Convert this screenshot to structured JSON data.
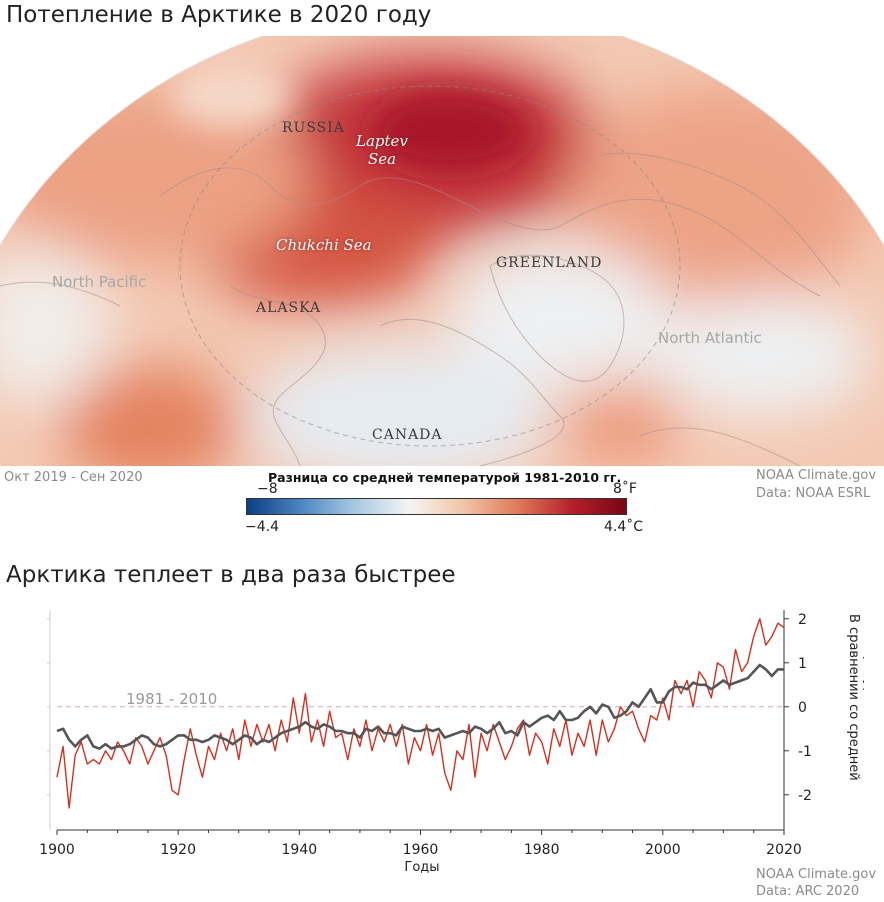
{
  "header": {
    "title": "Потепление в Арктике в 2020 году",
    "period": "Окт 2019 - Сен 2020",
    "credit_1": "NOAA Climate.gov",
    "credit_2": "Data: NOAA ESRL"
  },
  "map": {
    "labels": {
      "russia": "RUSSIA",
      "laptev_1": "Laptev",
      "laptev_2": "Sea",
      "chukchi": "Chukchi Sea",
      "greenland": "GREENLAND",
      "north_pacific": "North Pacific",
      "alaska": "ALASKA",
      "north_atlantic": "North Atlantic",
      "canada": "CANADA"
    }
  },
  "legend": {
    "title": "Разница со средней температурой 1981-2010 гг.",
    "f_min": "−8",
    "f_max": "8˚F",
    "c_min": "−4.4",
    "c_max": "4.4˚C",
    "colors": [
      "#0b3f86",
      "#4d86c2",
      "#a8c9e3",
      "#f4f4f4",
      "#f2c4a8",
      "#de7a5a",
      "#b6202b",
      "#7a0416"
    ]
  },
  "chart_section": {
    "title": "Арктика теплеет в два раза быстрее",
    "baseline_label": "1981 - 2010",
    "xlabel": "Годы",
    "ylabel": "В сравнении со средней температурой (С˚)",
    "credit_1": "NOAA Climate.gov",
    "credit_2": "Data: ARC 2020"
  },
  "chart_data": {
    "type": "line",
    "xlim": [
      1900,
      2020
    ],
    "ylim": [
      -2.8,
      2.2
    ],
    "x_ticks": [
      1900,
      1920,
      1940,
      1960,
      1980,
      2000,
      2020
    ],
    "y_ticks": [
      2,
      1,
      0,
      -1,
      -2
    ],
    "colors": {
      "arctic": "#d4301f",
      "global": "#555555",
      "baseline": "#d6a8b6"
    },
    "series": [
      {
        "key": "arctic",
        "x": [
          1900,
          1901,
          1902,
          1903,
          1904,
          1905,
          1906,
          1907,
          1908,
          1909,
          1910,
          1911,
          1912,
          1913,
          1914,
          1915,
          1916,
          1917,
          1918,
          1919,
          1920,
          1921,
          1922,
          1923,
          1924,
          1925,
          1926,
          1927,
          1928,
          1929,
          1930,
          1931,
          1932,
          1933,
          1934,
          1935,
          1936,
          1937,
          1938,
          1939,
          1940,
          1941,
          1942,
          1943,
          1944,
          1945,
          1946,
          1947,
          1948,
          1949,
          1950,
          1951,
          1952,
          1953,
          1954,
          1955,
          1956,
          1957,
          1958,
          1959,
          1960,
          1961,
          1962,
          1963,
          1964,
          1965,
          1966,
          1967,
          1968,
          1969,
          1970,
          1971,
          1972,
          1973,
          1974,
          1975,
          1976,
          1977,
          1978,
          1979,
          1980,
          1981,
          1982,
          1983,
          1984,
          1985,
          1986,
          1987,
          1988,
          1989,
          1990,
          1991,
          1992,
          1993,
          1994,
          1995,
          1996,
          1997,
          1998,
          1999,
          2000,
          2001,
          2002,
          2003,
          2004,
          2005,
          2006,
          2007,
          2008,
          2009,
          2010,
          2011,
          2012,
          2013,
          2014,
          2015,
          2016,
          2017,
          2018,
          2019,
          2020
        ],
        "values": [
          -1.6,
          -0.9,
          -2.3,
          -1.1,
          -0.8,
          -1.3,
          -1.2,
          -1.3,
          -1.0,
          -1.2,
          -0.8,
          -1.0,
          -1.3,
          -0.7,
          -0.9,
          -1.3,
          -1.0,
          -0.7,
          -1.1,
          -1.9,
          -2.0,
          -1.2,
          -0.5,
          -1.1,
          -1.6,
          -0.9,
          -1.2,
          -0.6,
          -1.0,
          -0.5,
          -1.2,
          -0.3,
          -0.9,
          -0.4,
          -0.8,
          -0.4,
          -1.0,
          -0.3,
          -0.8,
          0.2,
          -0.6,
          0.3,
          -0.8,
          -0.3,
          -0.9,
          -0.1,
          -0.7,
          -0.6,
          -1.2,
          -0.5,
          -0.9,
          -0.3,
          -1.0,
          -0.5,
          -0.8,
          -0.4,
          -0.9,
          -0.4,
          -1.3,
          -0.7,
          -1.0,
          -0.4,
          -1.1,
          -0.6,
          -1.5,
          -1.9,
          -1.0,
          -1.2,
          -0.4,
          -1.6,
          -0.6,
          -1.0,
          -0.4,
          -0.8,
          -1.2,
          -0.9,
          -0.5,
          -0.3,
          -1.1,
          -0.6,
          -0.8,
          -1.3,
          -0.5,
          -0.9,
          -0.3,
          -1.1,
          -0.6,
          -0.9,
          -0.3,
          -1.1,
          -0.3,
          -0.8,
          -0.5,
          0.0,
          -0.2,
          -0.1,
          -0.5,
          -0.8,
          -0.2,
          -0.3,
          0.2,
          -0.3,
          0.6,
          0.3,
          0.6,
          0.0,
          0.8,
          0.6,
          0.2,
          1.0,
          0.9,
          0.4,
          1.3,
          0.8,
          1.0,
          1.6,
          2.0,
          1.4,
          1.6,
          1.9,
          1.8
        ]
      },
      {
        "key": "global",
        "x": [
          1900,
          1901,
          1902,
          1903,
          1904,
          1905,
          1906,
          1907,
          1908,
          1909,
          1910,
          1911,
          1912,
          1913,
          1914,
          1915,
          1916,
          1917,
          1918,
          1919,
          1920,
          1921,
          1922,
          1923,
          1924,
          1925,
          1926,
          1927,
          1928,
          1929,
          1930,
          1931,
          1932,
          1933,
          1934,
          1935,
          1936,
          1937,
          1938,
          1939,
          1940,
          1941,
          1942,
          1943,
          1944,
          1945,
          1946,
          1947,
          1948,
          1949,
          1950,
          1951,
          1952,
          1953,
          1954,
          1955,
          1956,
          1957,
          1958,
          1959,
          1960,
          1961,
          1962,
          1963,
          1964,
          1965,
          1966,
          1967,
          1968,
          1969,
          1970,
          1971,
          1972,
          1973,
          1974,
          1975,
          1976,
          1977,
          1978,
          1979,
          1980,
          1981,
          1982,
          1983,
          1984,
          1985,
          1986,
          1987,
          1988,
          1989,
          1990,
          1991,
          1992,
          1993,
          1994,
          1995,
          1996,
          1997,
          1998,
          1999,
          2000,
          2001,
          2002,
          2003,
          2004,
          2005,
          2006,
          2007,
          2008,
          2009,
          2010,
          2011,
          2012,
          2013,
          2014,
          2015,
          2016,
          2017,
          2018,
          2019,
          2020
        ],
        "values": [
          -0.55,
          -0.5,
          -0.75,
          -0.9,
          -0.75,
          -0.65,
          -0.9,
          -0.95,
          -0.85,
          -0.95,
          -0.9,
          -0.9,
          -0.85,
          -0.75,
          -0.65,
          -0.7,
          -0.85,
          -0.9,
          -0.85,
          -0.75,
          -0.65,
          -0.65,
          -0.75,
          -0.75,
          -0.8,
          -0.75,
          -0.65,
          -0.7,
          -0.75,
          -0.85,
          -0.75,
          -0.65,
          -0.7,
          -0.85,
          -0.75,
          -0.8,
          -0.7,
          -0.6,
          -0.55,
          -0.5,
          -0.45,
          -0.35,
          -0.45,
          -0.5,
          -0.4,
          -0.45,
          -0.55,
          -0.55,
          -0.6,
          -0.6,
          -0.7,
          -0.5,
          -0.55,
          -0.45,
          -0.6,
          -0.6,
          -0.65,
          -0.45,
          -0.5,
          -0.55,
          -0.55,
          -0.5,
          -0.55,
          -0.5,
          -0.7,
          -0.65,
          -0.6,
          -0.55,
          -0.6,
          -0.45,
          -0.5,
          -0.6,
          -0.5,
          -0.35,
          -0.6,
          -0.55,
          -0.65,
          -0.35,
          -0.45,
          -0.35,
          -0.25,
          -0.2,
          -0.3,
          -0.1,
          -0.3,
          -0.3,
          -0.25,
          -0.1,
          0.0,
          -0.15,
          0.05,
          0.0,
          -0.25,
          -0.2,
          -0.1,
          0.1,
          0.0,
          0.2,
          0.4,
          0.1,
          0.1,
          0.35,
          0.45,
          0.45,
          0.4,
          0.55,
          0.5,
          0.5,
          0.4,
          0.5,
          0.6,
          0.5,
          0.55,
          0.6,
          0.65,
          0.8,
          0.95,
          0.85,
          0.7,
          0.85,
          0.85
        ]
      }
    ]
  }
}
